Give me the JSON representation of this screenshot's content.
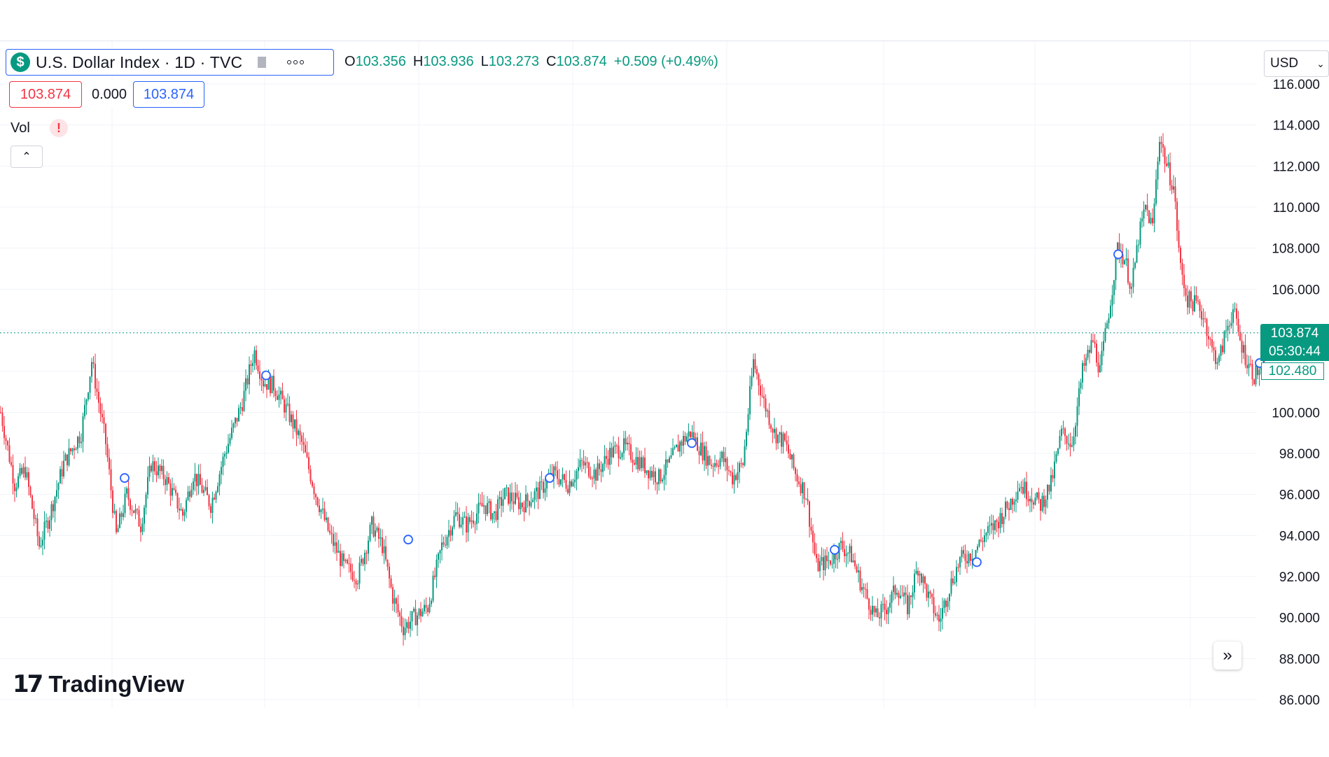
{
  "symbol": {
    "badge": "$",
    "title": "U.S. Dollar Index · 1D · TVC",
    "icons": [
      "flag-icon",
      "more-icon"
    ]
  },
  "ohlc": {
    "o_label": "O",
    "o_value": "103.356",
    "h_label": "H",
    "h_value": "103.936",
    "l_label": "L",
    "l_value": "103.273",
    "c_label": "C",
    "c_value": "103.874",
    "change": "+0.509 (+0.49%)"
  },
  "price_boxes": {
    "bid": "103.874",
    "spread": "0.000",
    "ask": "103.874"
  },
  "volume": {
    "label": "Vol",
    "warning": "!"
  },
  "currency": {
    "value": "USD"
  },
  "last_price": {
    "price": "103.874",
    "countdown": "05:30:44",
    "secondary": "102.480"
  },
  "logo": {
    "text": "TradingView"
  },
  "colors": {
    "up": "#089981",
    "down": "#f23645",
    "accent": "#2962ff",
    "grid": "#f0f3fa"
  },
  "chart_data": {
    "type": "candlestick",
    "y_ticks": [
      "86.000",
      "88.000",
      "90.000",
      "92.000",
      "94.000",
      "96.000",
      "98.000",
      "100.000",
      "102.000",
      "104.000",
      "106.000",
      "108.000",
      "110.000",
      "112.000",
      "114.000",
      "116.000"
    ],
    "ylim": [
      86,
      116
    ],
    "last_price": 103.874,
    "anchors": [
      [
        0,
        100.0
      ],
      [
        20,
        96.5
      ],
      [
        35,
        97.2
      ],
      [
        55,
        93.5
      ],
      [
        70,
        95.0
      ],
      [
        90,
        97.5
      ],
      [
        115,
        99.0
      ],
      [
        130,
        102.5
      ],
      [
        150,
        98.5
      ],
      [
        165,
        94.0
      ],
      [
        180,
        96.0
      ],
      [
        200,
        94.5
      ],
      [
        215,
        97.5
      ],
      [
        235,
        96.8
      ],
      [
        260,
        95.0
      ],
      [
        275,
        97.0
      ],
      [
        300,
        95.5
      ],
      [
        320,
        98.0
      ],
      [
        345,
        100.5
      ],
      [
        362,
        103.0
      ],
      [
        375,
        101.5
      ],
      [
        390,
        101.3
      ],
      [
        410,
        100.0
      ],
      [
        430,
        98.5
      ],
      [
        450,
        96.0
      ],
      [
        470,
        94.0
      ],
      [
        490,
        92.5
      ],
      [
        510,
        92.0
      ],
      [
        530,
        94.5
      ],
      [
        545,
        93.5
      ],
      [
        560,
        91.0
      ],
      [
        575,
        89.5
      ],
      [
        590,
        90.0
      ],
      [
        610,
        90.5
      ],
      [
        630,
        93.5
      ],
      [
        650,
        95.0
      ],
      [
        665,
        94.5
      ],
      [
        690,
        95.5
      ],
      [
        705,
        95.0
      ],
      [
        720,
        96.0
      ],
      [
        745,
        95.5
      ],
      [
        770,
        96.2
      ],
      [
        790,
        97.0
      ],
      [
        810,
        96.5
      ],
      [
        830,
        97.5
      ],
      [
        850,
        97.0
      ],
      [
        870,
        98.0
      ],
      [
        890,
        98.3
      ],
      [
        905,
        97.8
      ],
      [
        925,
        97.2
      ],
      [
        940,
        96.8
      ],
      [
        955,
        97.5
      ],
      [
        970,
        98.5
      ],
      [
        985,
        99.0
      ],
      [
        1000,
        98.2
      ],
      [
        1015,
        97.5
      ],
      [
        1030,
        97.8
      ],
      [
        1045,
        96.8
      ],
      [
        1060,
        97.5
      ],
      [
        1075,
        102.5
      ],
      [
        1090,
        100.5
      ],
      [
        1105,
        99.0
      ],
      [
        1120,
        98.5
      ],
      [
        1135,
        97.0
      ],
      [
        1150,
        96.0
      ],
      [
        1165,
        92.5
      ],
      [
        1185,
        92.8
      ],
      [
        1200,
        93.5
      ],
      [
        1215,
        93.0
      ],
      [
        1230,
        91.5
      ],
      [
        1250,
        90.0
      ],
      [
        1265,
        90.5
      ],
      [
        1280,
        91.5
      ],
      [
        1295,
        90.5
      ],
      [
        1310,
        92.5
      ],
      [
        1325,
        91.0
      ],
      [
        1340,
        89.8
      ],
      [
        1355,
        91.5
      ],
      [
        1370,
        92.8
      ],
      [
        1390,
        93.2
      ],
      [
        1405,
        94.0
      ],
      [
        1420,
        94.5
      ],
      [
        1440,
        95.5
      ],
      [
        1455,
        96.5
      ],
      [
        1470,
        96.0
      ],
      [
        1485,
        95.5
      ],
      [
        1500,
        96.5
      ],
      [
        1515,
        99.0
      ],
      [
        1530,
        98.5
      ],
      [
        1545,
        102.0
      ],
      [
        1560,
        103.5
      ],
      [
        1570,
        102.0
      ],
      [
        1585,
        105.5
      ],
      [
        1595,
        108.0
      ],
      [
        1605,
        107.5
      ],
      [
        1615,
        106.0
      ],
      [
        1625,
        108.5
      ],
      [
        1635,
        110.0
      ],
      [
        1645,
        109.0
      ],
      [
        1655,
        113.5
      ],
      [
        1665,
        112.0
      ],
      [
        1675,
        111.0
      ],
      [
        1685,
        107.0
      ],
      [
        1695,
        105.5
      ],
      [
        1710,
        105.2
      ],
      [
        1720,
        104.5
      ],
      [
        1730,
        103.0
      ],
      [
        1740,
        102.5
      ],
      [
        1750,
        104.0
      ],
      [
        1760,
        105.0
      ],
      [
        1770,
        103.5
      ],
      [
        1780,
        102.5
      ],
      [
        1790,
        101.8
      ],
      [
        1800,
        102.2
      ],
      [
        1808,
        103.6
      ],
      [
        1812,
        103.874
      ]
    ],
    "event_markers": [
      [
        178,
        96.8
      ],
      [
        380,
        101.8
      ],
      [
        583,
        93.8
      ],
      [
        785,
        96.8
      ],
      [
        988,
        98.5
      ],
      [
        1192,
        93.3
      ],
      [
        1395,
        92.7
      ],
      [
        1597,
        107.7
      ],
      [
        1799,
        102.4
      ]
    ],
    "gridlines_x": [
      160,
      378,
      598,
      818,
      1038,
      1262,
      1478,
      1700
    ]
  }
}
